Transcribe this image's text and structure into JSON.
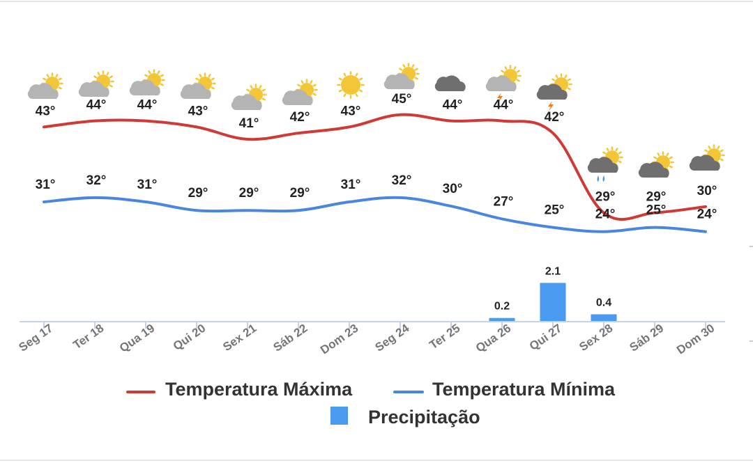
{
  "colors": {
    "max_line": "#d03a36",
    "min_line": "#4a86df",
    "precip_bar": "#4a9af0",
    "axis": "#c6d3e6",
    "sun": "#f2c636",
    "cloud_light": "#b4b4b4",
    "cloud_dark": "#6f6f6f",
    "bolt": "#f07b20",
    "rain": "#4a90e2"
  },
  "chart_data": {
    "type": "line",
    "categories": [
      "Seg 17",
      "Ter 18",
      "Qua 19",
      "Qui 20",
      "Sex 21",
      "Sáb 22",
      "Dom 23",
      "Seg 24",
      "Ter 25",
      "Qua 26",
      "Qui 27",
      "Sex 28",
      "Sáb 29",
      "Dom 30"
    ],
    "series": [
      {
        "name": "Temperatura Máxima",
        "type": "line",
        "values": [
          43,
          44,
          44,
          43,
          41,
          42,
          43,
          45,
          44,
          44,
          42,
          29,
          29,
          30
        ],
        "labels": [
          "43°",
          "44°",
          "44°",
          "43°",
          "41°",
          "42°",
          "43°",
          "45°",
          "44°",
          "44°",
          "42°",
          "29°",
          "29°",
          "30°"
        ]
      },
      {
        "name": "Temperatura Mínima",
        "type": "line",
        "values": [
          31,
          32,
          31,
          29,
          29,
          29,
          31,
          32,
          30,
          27,
          25,
          24,
          25,
          24
        ],
        "labels": [
          "31°",
          "32°",
          "31°",
          "29°",
          "29°",
          "29°",
          "31°",
          "32°",
          "30°",
          "27°",
          "25°",
          "24°",
          "25°",
          "24°"
        ]
      },
      {
        "name": "Precipitação",
        "type": "bar",
        "values": [
          0,
          0,
          0,
          0,
          0,
          0,
          0,
          0,
          0,
          0.2,
          2.1,
          0.4,
          0,
          0
        ],
        "labels": [
          "",
          "",
          "",
          "",
          "",
          "",
          "",
          "",
          "",
          "0.2",
          "2.1",
          "0.4",
          "",
          ""
        ]
      }
    ],
    "icons": [
      "partly-cloudy",
      "partly-cloudy",
      "partly-cloudy",
      "partly-cloudy",
      "partly-cloudy",
      "partly-cloudy",
      "sunny",
      "partly-cloudy",
      "cloudy-dark",
      "thunder-partly-cloudy",
      "thunder-dark-partly-cloudy",
      "rain-dark-partly-cloudy",
      "dark-partly-cloudy",
      "dark-partly-cloudy"
    ],
    "legend": [
      {
        "label": "Temperatura Máxima",
        "kind": "line"
      },
      {
        "label": "Temperatura Mínima",
        "kind": "line"
      },
      {
        "label": "Precipitação",
        "kind": "bar"
      }
    ],
    "legend_position": "bottom-center",
    "grid": false
  }
}
